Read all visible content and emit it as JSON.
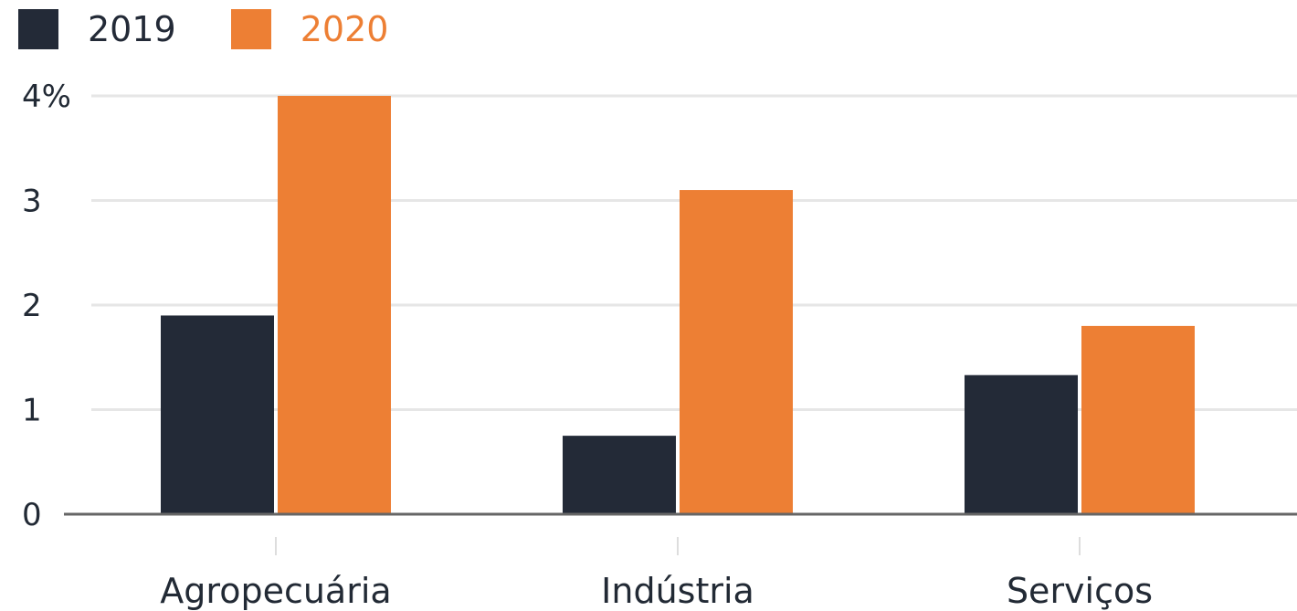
{
  "colors": {
    "series_2019": "#232a37",
    "series_2020": "#ed7f34",
    "grid": "#e6e6e6",
    "axis": "#666666",
    "text": "#222a35"
  },
  "legend": {
    "items": [
      {
        "label": "2019",
        "color": "#232a37",
        "text_color": "#232a37"
      },
      {
        "label": "2020",
        "color": "#ed7f34",
        "text_color": "#ed7f34"
      }
    ]
  },
  "chart_data": {
    "type": "bar",
    "categories": [
      "Agropecuária",
      "Indústria",
      "Serviços"
    ],
    "series": [
      {
        "name": "2019",
        "values": [
          1.9,
          0.75,
          1.33
        ]
      },
      {
        "name": "2020",
        "values": [
          4.0,
          3.1,
          1.8
        ]
      }
    ],
    "ylim": [
      0,
      4
    ],
    "yticks": [
      0,
      1,
      2,
      3,
      4
    ],
    "ytick_labels": [
      "0",
      "1",
      "2",
      "3",
      "4%"
    ],
    "xlabel": "",
    "ylabel": "",
    "grid": true,
    "legend_position": "top-left"
  }
}
